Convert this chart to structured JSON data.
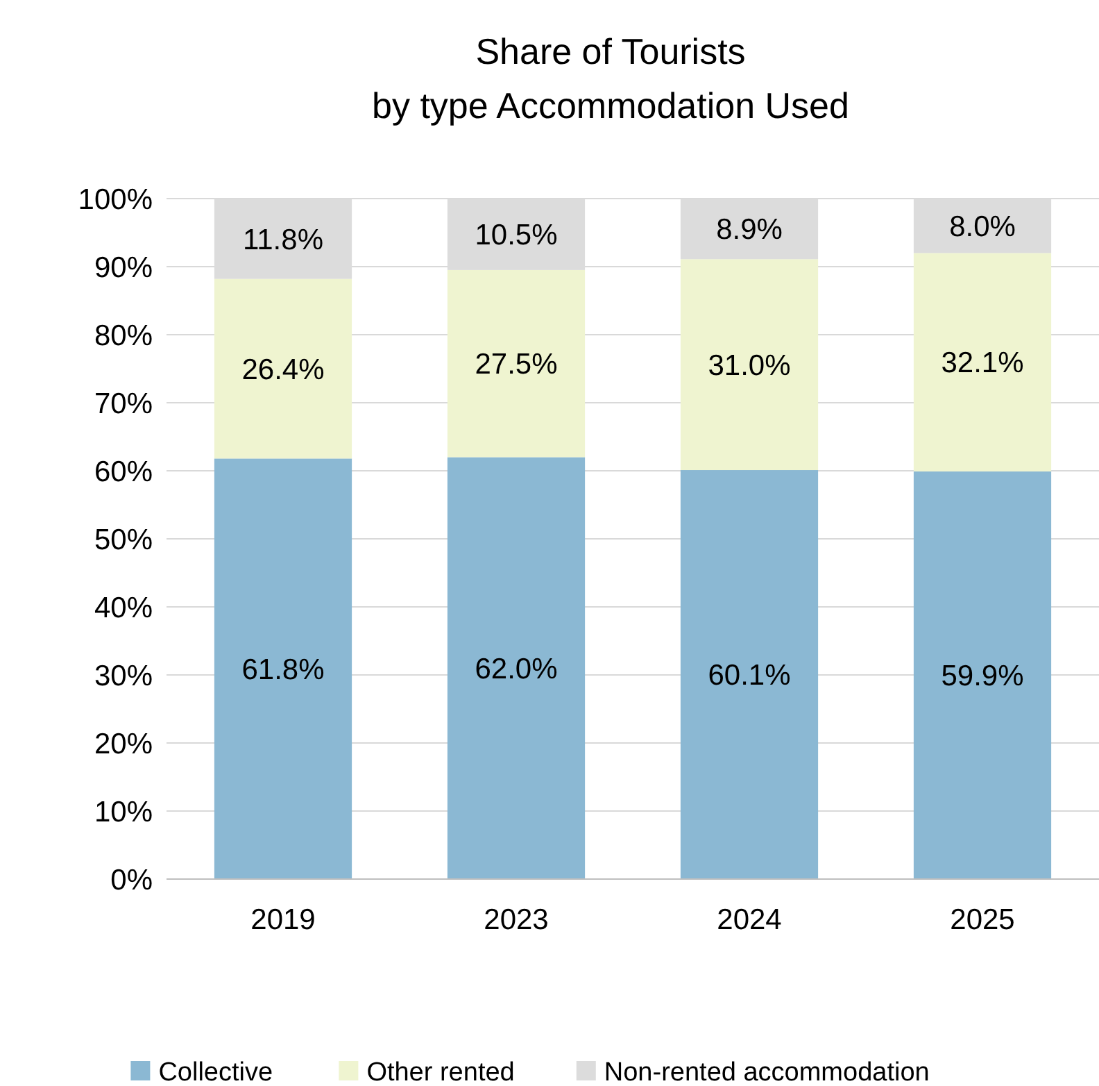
{
  "chart_data": {
    "type": "bar",
    "title": "Share of Tourists\nby type Accommodation Used",
    "categories": [
      "2019",
      "2023",
      "2024",
      "2025"
    ],
    "stacked": true,
    "series": [
      {
        "name": "Collective",
        "color": "#8bb8d3",
        "values": [
          61.8,
          62.0,
          60.1,
          59.9
        ],
        "value_labels": [
          "61.8%",
          "62.0%",
          "60.1%",
          "59.9%"
        ]
      },
      {
        "name": "Other rented",
        "color": "#eff4d0",
        "values": [
          26.4,
          27.5,
          31.0,
          32.1
        ],
        "value_labels": [
          "26.4%",
          "27.5%",
          "31.0%",
          "32.1%"
        ]
      },
      {
        "name": "Non-rented accommodation",
        "color": "#dcdcdc",
        "values": [
          11.8,
          10.5,
          8.9,
          8.0
        ],
        "value_labels": [
          "11.8%",
          "10.5%",
          "8.9%",
          "8.0%"
        ]
      }
    ],
    "ylim": [
      0,
      100
    ],
    "yticks": [
      {
        "value": 0,
        "label": "0%"
      },
      {
        "value": 10,
        "label": "10%"
      },
      {
        "value": 20,
        "label": "20%"
      },
      {
        "value": 30,
        "label": "30%"
      },
      {
        "value": 40,
        "label": "40%"
      },
      {
        "value": 50,
        "label": "50%"
      },
      {
        "value": 60,
        "label": "60%"
      },
      {
        "value": 70,
        "label": "70%"
      },
      {
        "value": 80,
        "label": "80%"
      },
      {
        "value": 90,
        "label": "90%"
      },
      {
        "value": 100,
        "label": "100%"
      }
    ],
    "grid": "y",
    "legend": "bottom"
  }
}
